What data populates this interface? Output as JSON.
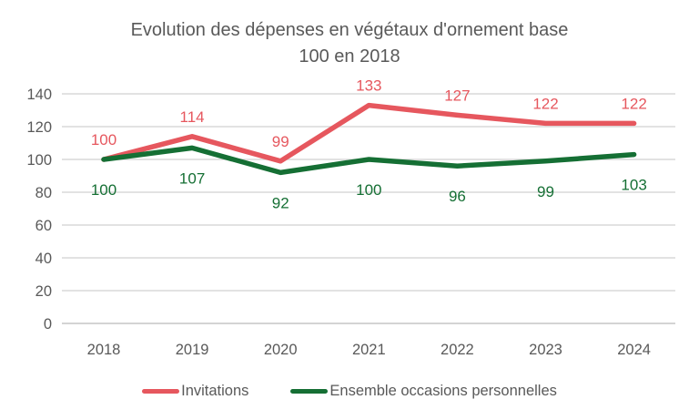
{
  "title": "Evolution des dépenses en végétaux d'ornement base 100 en 2018",
  "title_lines": [
    "Evolution des dépenses en végétaux d'ornement base",
    "100 en 2018"
  ],
  "colors": {
    "red_series": "#e6575e",
    "green_series": "#156f34",
    "axis_text": "#595959",
    "gridline": "#d9d9d9",
    "axis_line": "#c6c6c6",
    "background": "#ffffff"
  },
  "chart_data": {
    "type": "line",
    "title": "Evolution des dépenses en végétaux d'ornement base 100 en 2018",
    "categories": [
      "2018",
      "2019",
      "2020",
      "2021",
      "2022",
      "2023",
      "2024"
    ],
    "series": [
      {
        "name": "Invitations",
        "color": "#e6575e",
        "values": [
          100,
          114,
          99,
          133,
          127,
          122,
          122
        ],
        "label_position": "above"
      },
      {
        "name": "Ensemble occasions personnelles",
        "color": "#156f34",
        "values": [
          100,
          107,
          92,
          100,
          96,
          99,
          103
        ],
        "label_position": "below"
      }
    ],
    "xlabel": "",
    "ylabel": "",
    "y_ticks": [
      0,
      20,
      40,
      60,
      80,
      100,
      120,
      140
    ],
    "ylim": [
      0,
      140
    ],
    "grid": true,
    "grid_direction": "horizontal",
    "data_labels": true,
    "legend_position": "bottom",
    "text_color": "#595959",
    "grid_color": "#d9d9d9",
    "axis_color": "#c6c6c6"
  }
}
